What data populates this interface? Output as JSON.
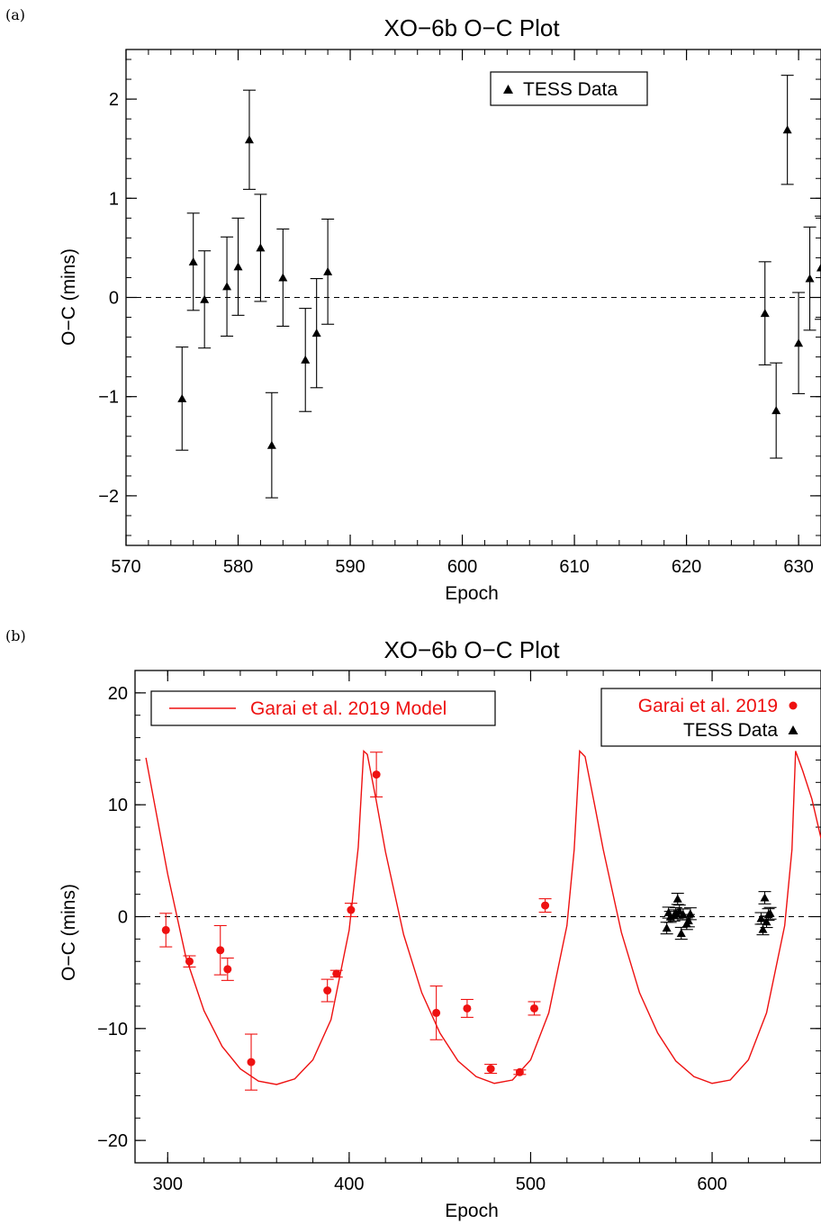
{
  "chart_data": [
    {
      "panel_label": "(a)",
      "type": "scatter",
      "title": "XO−6b O−C Plot",
      "xlabel": "Epoch",
      "ylabel": "O−C (mins)",
      "xlim": [
        570,
        632
      ],
      "ylim": [
        -2.5,
        2.5
      ],
      "x_ticks": [
        "570",
        "580",
        "590",
        "600",
        "610",
        "620",
        "630"
      ],
      "y_ticks": [
        "−2",
        "−1",
        "0",
        "1",
        "2"
      ],
      "reference_line": 0,
      "legend_position": "top-right",
      "series": [
        {
          "name": "TESS Data",
          "marker": "triangle",
          "color": "#000000",
          "x": [
            575,
            576,
            577,
            579,
            580,
            581,
            582,
            583,
            584,
            586,
            587,
            588,
            627,
            628,
            629,
            630,
            631,
            632
          ],
          "y": [
            -1.02,
            0.36,
            -0.02,
            0.11,
            0.31,
            1.59,
            0.5,
            -1.49,
            0.2,
            -0.63,
            -0.36,
            0.26,
            -0.16,
            -1.14,
            1.69,
            -0.46,
            0.19,
            0.3
          ],
          "err": [
            0.52,
            0.49,
            0.49,
            0.5,
            0.49,
            0.5,
            0.54,
            0.53,
            0.49,
            0.52,
            0.55,
            0.53,
            0.52,
            0.48,
            0.55,
            0.51,
            0.52,
            0.52
          ]
        }
      ]
    },
    {
      "panel_label": "(b)",
      "type": "scatter",
      "title": "XO−6b O−C Plot",
      "xlabel": "Epoch",
      "ylabel": "O−C (mins)",
      "xlim": [
        282,
        660
      ],
      "ylim": [
        -22,
        22
      ],
      "x_ticks": [
        "300",
        "400",
        "500",
        "600"
      ],
      "y_ticks": [
        "−20",
        "−10",
        "0",
        "10",
        "20"
      ],
      "reference_line": 0,
      "legend_positions": [
        "top-left",
        "top-right"
      ],
      "model": {
        "name": "Garai et al. 2019 Model",
        "color": "#ee1111",
        "x": [
          288,
          300,
          310,
          320,
          330,
          340,
          350,
          360,
          370,
          380,
          390,
          400,
          405,
          408,
          410,
          415,
          420,
          430,
          440,
          450,
          460,
          470,
          480,
          490,
          500,
          510,
          520,
          524,
          527,
          530,
          535,
          540,
          550,
          560,
          570,
          580,
          590,
          600,
          610,
          620,
          630,
          640,
          644,
          646,
          650,
          655,
          660
        ],
        "y": [
          14.2,
          3.8,
          -3.6,
          -8.4,
          -11.6,
          -13.6,
          -14.7,
          -15.0,
          -14.5,
          -12.8,
          -9.2,
          -1.2,
          6.2,
          14.8,
          14.5,
          10.3,
          5.8,
          -1.6,
          -6.8,
          -10.4,
          -12.9,
          -14.3,
          -14.9,
          -14.6,
          -12.8,
          -8.6,
          -0.8,
          6.0,
          14.8,
          14.3,
          10.2,
          6.0,
          -1.4,
          -6.8,
          -10.4,
          -12.9,
          -14.3,
          -14.9,
          -14.6,
          -12.8,
          -8.6,
          -0.8,
          6.0,
          14.8,
          13.0,
          10.5,
          7.0
        ]
      },
      "series": [
        {
          "name": "Garai et al. 2019",
          "marker": "circle",
          "color": "#ee1111",
          "x": [
            299,
            312,
            329,
            333,
            346,
            388,
            393,
            401,
            415,
            448,
            465,
            478,
            494,
            502,
            508
          ],
          "y": [
            -1.2,
            -4.0,
            -3.0,
            -4.7,
            -13.0,
            -6.6,
            -5.1,
            0.6,
            12.7,
            -8.6,
            -8.2,
            -13.6,
            -13.9,
            -8.2,
            1.0
          ],
          "err": [
            1.5,
            0.5,
            2.2,
            1.0,
            2.5,
            1.0,
            0.3,
            0.6,
            2.0,
            2.4,
            0.8,
            0.4,
            0.2,
            0.6,
            0.6
          ]
        },
        {
          "name": "TESS Data",
          "marker": "triangle",
          "color": "#000000",
          "x": [
            575,
            576,
            577,
            579,
            580,
            581,
            582,
            583,
            584,
            586,
            587,
            588,
            627,
            628,
            629,
            630,
            631,
            632
          ],
          "y": [
            -1.02,
            0.36,
            -0.02,
            0.11,
            0.31,
            1.59,
            0.5,
            -1.49,
            0.2,
            -0.63,
            -0.36,
            0.26,
            -0.16,
            -1.14,
            1.69,
            -0.46,
            0.19,
            0.3
          ],
          "err": [
            0.52,
            0.49,
            0.49,
            0.5,
            0.49,
            0.5,
            0.54,
            0.53,
            0.49,
            0.52,
            0.55,
            0.53,
            0.52,
            0.48,
            0.55,
            0.51,
            0.52,
            0.52
          ]
        }
      ]
    }
  ]
}
